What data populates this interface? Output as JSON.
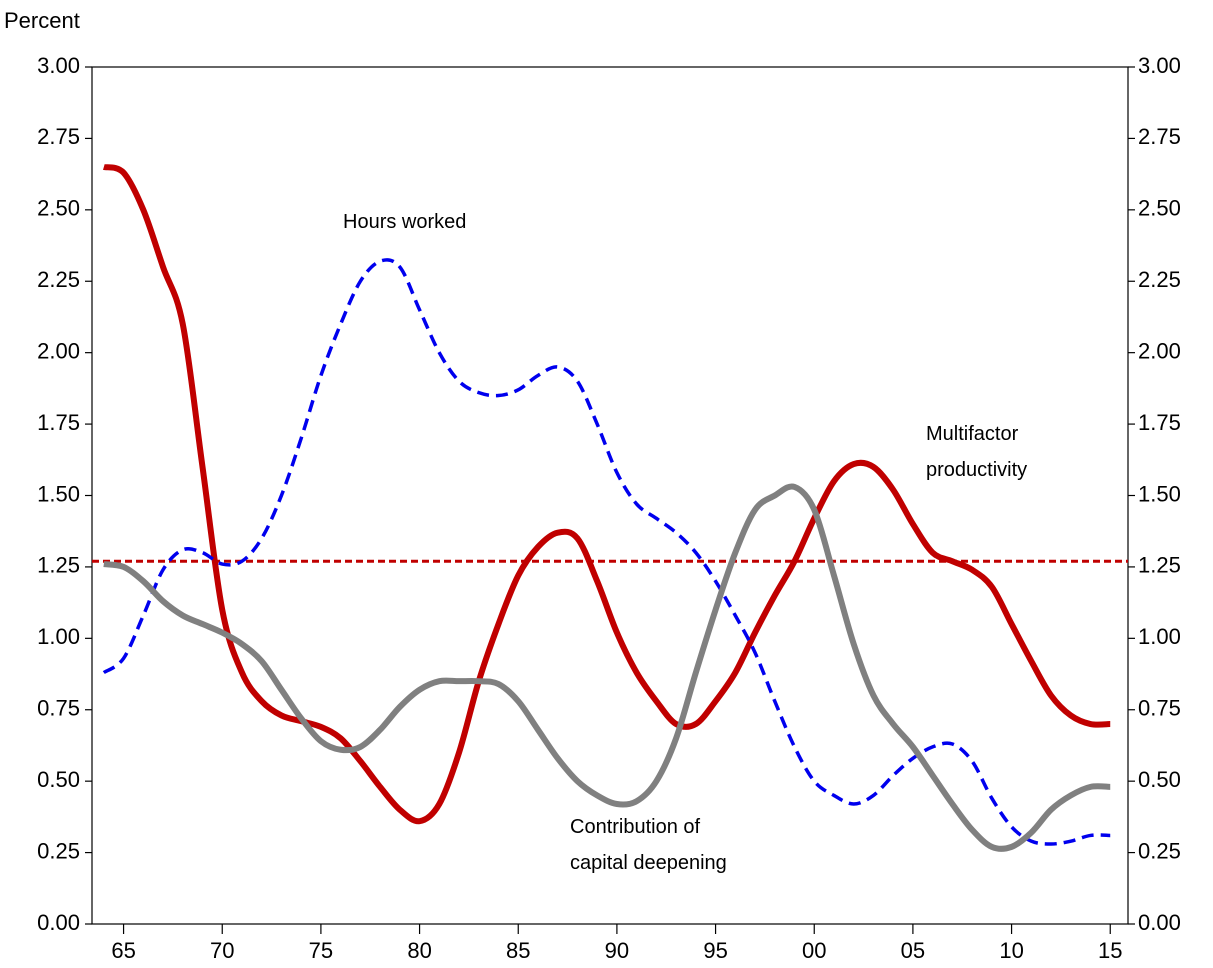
{
  "chart_data": {
    "type": "line",
    "y_label": "Percent",
    "x": [
      1964,
      1965,
      1966,
      1967,
      1968,
      1969,
      1970,
      1971,
      1972,
      1973,
      1974,
      1975,
      1976,
      1977,
      1978,
      1979,
      1980,
      1981,
      1982,
      1983,
      1984,
      1985,
      1986,
      1987,
      1988,
      1989,
      1990,
      1991,
      1992,
      1993,
      1994,
      1995,
      1996,
      1997,
      1998,
      1999,
      2000,
      2001,
      2002,
      2003,
      2004,
      2005,
      2006,
      2007,
      2008,
      2009,
      2010,
      2011,
      2012,
      2013,
      2014,
      2015
    ],
    "series": [
      {
        "label_lines": [
          "Multifactor",
          "productivity"
        ],
        "color": "#c00000",
        "style": "solid",
        "width": 6,
        "values": [
          2.65,
          2.63,
          2.5,
          2.3,
          2.1,
          1.6,
          1.1,
          0.88,
          0.78,
          0.73,
          0.71,
          0.69,
          0.65,
          0.57,
          0.48,
          0.4,
          0.36,
          0.42,
          0.6,
          0.85,
          1.05,
          1.22,
          1.32,
          1.37,
          1.35,
          1.2,
          1.02,
          0.88,
          0.78,
          0.7,
          0.7,
          0.78,
          0.88,
          1.02,
          1.15,
          1.27,
          1.42,
          1.55,
          1.61,
          1.6,
          1.52,
          1.4,
          1.3,
          1.27,
          1.24,
          1.18,
          1.05,
          0.92,
          0.8,
          0.73,
          0.7,
          0.7
        ]
      },
      {
        "label_lines": [
          "Hours worked"
        ],
        "color": "#0000ee",
        "style": "dashed",
        "width": 3.5,
        "values": [
          0.88,
          0.93,
          1.08,
          1.24,
          1.31,
          1.3,
          1.26,
          1.27,
          1.35,
          1.5,
          1.7,
          1.92,
          2.1,
          2.25,
          2.32,
          2.3,
          2.15,
          2.0,
          1.9,
          1.86,
          1.85,
          1.87,
          1.92,
          1.95,
          1.9,
          1.75,
          1.58,
          1.47,
          1.42,
          1.37,
          1.3,
          1.2,
          1.08,
          0.95,
          0.78,
          0.62,
          0.5,
          0.45,
          0.42,
          0.45,
          0.52,
          0.58,
          0.62,
          0.63,
          0.57,
          0.44,
          0.34,
          0.29,
          0.28,
          0.29,
          0.31,
          0.31
        ]
      },
      {
        "label_lines": [
          "Contribution of",
          "capital deepening"
        ],
        "color": "#808080",
        "style": "solid",
        "width": 6,
        "values": [
          1.26,
          1.25,
          1.2,
          1.13,
          1.08,
          1.05,
          1.02,
          0.98,
          0.92,
          0.82,
          0.72,
          0.64,
          0.61,
          0.62,
          0.68,
          0.76,
          0.82,
          0.85,
          0.85,
          0.85,
          0.84,
          0.78,
          0.68,
          0.58,
          0.5,
          0.45,
          0.42,
          0.43,
          0.5,
          0.65,
          0.88,
          1.1,
          1.3,
          1.45,
          1.5,
          1.53,
          1.45,
          1.22,
          0.98,
          0.8,
          0.7,
          0.62,
          0.52,
          0.42,
          0.33,
          0.27,
          0.27,
          0.32,
          0.4,
          0.45,
          0.48,
          0.48
        ]
      }
    ],
    "reference_line": {
      "value": 1.27,
      "color": "#c00000"
    },
    "xlim": [
      1963.4,
      2015.9
    ],
    "xticks": [
      {
        "value": 1965,
        "label": "65"
      },
      {
        "value": 1970,
        "label": "70"
      },
      {
        "value": 1975,
        "label": "75"
      },
      {
        "value": 1980,
        "label": "80"
      },
      {
        "value": 1985,
        "label": "85"
      },
      {
        "value": 1990,
        "label": "90"
      },
      {
        "value": 1995,
        "label": "95"
      },
      {
        "value": 2000,
        "label": "00"
      },
      {
        "value": 2005,
        "label": "05"
      },
      {
        "value": 2010,
        "label": "10"
      },
      {
        "value": 2015,
        "label": "15"
      }
    ],
    "ylim": [
      0,
      3
    ],
    "yticks": [
      {
        "value": 0,
        "label": "0.00"
      },
      {
        "value": 0.25,
        "label": "0.25"
      },
      {
        "value": 0.5,
        "label": "0.50"
      },
      {
        "value": 0.75,
        "label": "0.75"
      },
      {
        "value": 1,
        "label": "1.00"
      },
      {
        "value": 1.25,
        "label": "1.25"
      },
      {
        "value": 1.5,
        "label": "1.50"
      },
      {
        "value": 1.75,
        "label": "1.75"
      },
      {
        "value": 2,
        "label": "2.00"
      },
      {
        "value": 2.25,
        "label": "2.25"
      },
      {
        "value": 2.5,
        "label": "2.50"
      },
      {
        "value": 2.75,
        "label": "2.75"
      },
      {
        "value": 3,
        "label": "3.00"
      }
    ],
    "y2lim": [
      0,
      3
    ],
    "y2ticks": [
      {
        "value": 0,
        "label": "0.00"
      },
      {
        "value": 0.25,
        "label": "0.25"
      },
      {
        "value": 0.5,
        "label": "0.50"
      },
      {
        "value": 0.75,
        "label": "0.75"
      },
      {
        "value": 1,
        "label": "1.00"
      },
      {
        "value": 1.25,
        "label": "1.25"
      },
      {
        "value": 1.5,
        "label": "1.50"
      },
      {
        "value": 1.75,
        "label": "1.75"
      },
      {
        "value": 2,
        "label": "2.00"
      },
      {
        "value": 2.25,
        "label": "2.25"
      },
      {
        "value": 2.5,
        "label": "2.50"
      },
      {
        "value": 2.75,
        "label": "2.75"
      },
      {
        "value": 3,
        "label": "3.00"
      }
    ]
  }
}
